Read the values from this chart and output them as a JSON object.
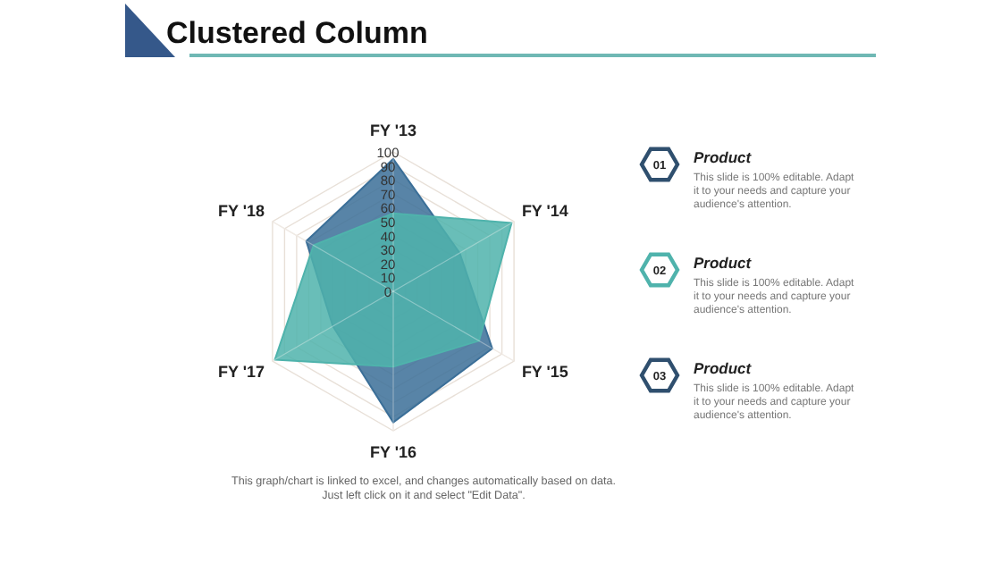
{
  "chart_data": {
    "type": "radar",
    "title": "Clustered Column",
    "categories": [
      "FY '13",
      "FY '14",
      "FY '15",
      "FY '16",
      "FY '17",
      "FY '18"
    ],
    "series": [
      {
        "color": "#3b6f98",
        "values": [
          95,
          55,
          82,
          94,
          50,
          72
        ]
      },
      {
        "color": "#4fb3ac",
        "values": [
          56,
          98,
          71,
          54,
          98,
          66
        ]
      }
    ],
    "ylim": [
      0,
      100
    ],
    "yticks": [
      0,
      10,
      20,
      30,
      40,
      50,
      60,
      70,
      80,
      90,
      100
    ],
    "grid": true,
    "marker": "none",
    "annotations": [
      "01",
      "Product",
      "This slide is 100% editable. Adapt it to your needs and capture your audience's attention.",
      "02",
      "Product",
      "This slide is 100% editable. Adapt it to your needs and capture your audience's attention.",
      "03",
      "Product",
      "This slide is 100% editable. Adapt it to your needs and capture your audience's attention.",
      "This graph/chart is linked to excel, and changes automatically based on data. Just left click on it and select \"Edit Data\"."
    ]
  }
}
